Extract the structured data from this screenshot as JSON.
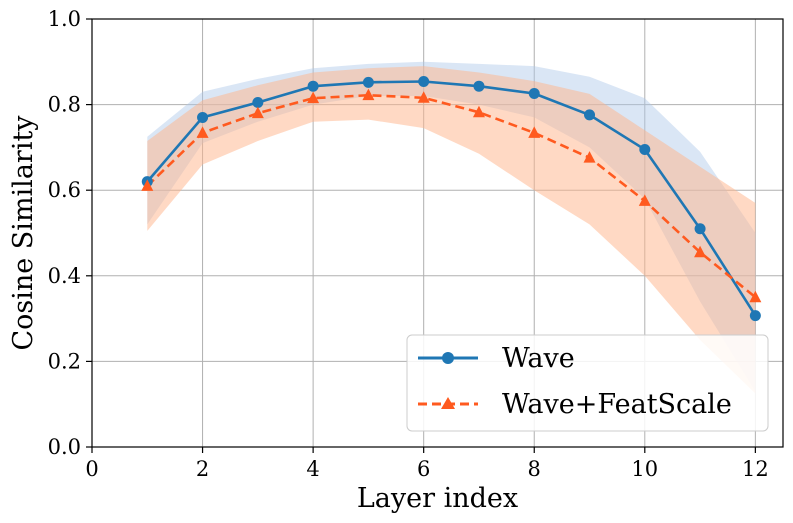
{
  "chart_data": {
    "type": "line",
    "title": "",
    "xlabel": "Layer index",
    "ylabel": "Cosine Similarity",
    "xlim": [
      0,
      12.5
    ],
    "ylim": [
      0.0,
      1.0
    ],
    "x_ticks": [
      0,
      2,
      4,
      6,
      8,
      10,
      12
    ],
    "x_tick_labels": [
      "0",
      "2",
      "4",
      "6",
      "8",
      "10",
      "12"
    ],
    "y_ticks": [
      0.0,
      0.2,
      0.4,
      0.6,
      0.8,
      1.0
    ],
    "y_tick_labels": [
      "0.0",
      "0.2",
      "0.4",
      "0.6",
      "0.8",
      "1.0"
    ],
    "grid": true,
    "legend_position": "bottom-right",
    "x": [
      1,
      2,
      3,
      4,
      5,
      6,
      7,
      8,
      9,
      10,
      11,
      12
    ],
    "series": [
      {
        "name": "Wave",
        "color": "#1f77b4",
        "band_color": "#aec7e8",
        "linestyle": "solid",
        "marker": "circle",
        "values": [
          0.62,
          0.77,
          0.805,
          0.843,
          0.852,
          0.854,
          0.843,
          0.826,
          0.776,
          0.695,
          0.51,
          0.307
        ],
        "lower": [
          0.52,
          0.71,
          0.76,
          0.8,
          0.82,
          0.82,
          0.8,
          0.77,
          0.7,
          0.58,
          0.34,
          0.13
        ],
        "upper": [
          0.725,
          0.83,
          0.86,
          0.885,
          0.895,
          0.9,
          0.895,
          0.89,
          0.865,
          0.815,
          0.69,
          0.5
        ]
      },
      {
        "name": "Wave+FeatScale",
        "color": "#ff5a1f",
        "band_color": "#ffb48a",
        "linestyle": "dashed",
        "marker": "triangle",
        "values": [
          0.61,
          0.734,
          0.78,
          0.815,
          0.822,
          0.816,
          0.782,
          0.734,
          0.676,
          0.575,
          0.455,
          0.35
        ],
        "lower": [
          0.505,
          0.66,
          0.715,
          0.76,
          0.765,
          0.745,
          0.685,
          0.6,
          0.52,
          0.4,
          0.25,
          0.125
        ],
        "upper": [
          0.715,
          0.81,
          0.845,
          0.875,
          0.885,
          0.89,
          0.875,
          0.855,
          0.825,
          0.74,
          0.655,
          0.57
        ]
      }
    ]
  }
}
